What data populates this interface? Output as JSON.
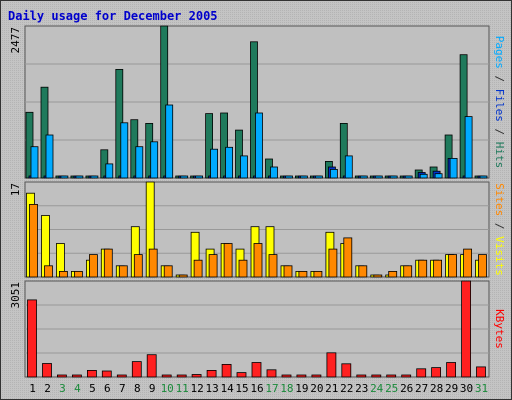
{
  "chart_data": {
    "type": "bar",
    "title": "Daily usage for December 2005",
    "categories": [
      "1",
      "2",
      "3",
      "4",
      "5",
      "6",
      "7",
      "8",
      "9",
      "10",
      "11",
      "12",
      "13",
      "14",
      "15",
      "16",
      "17",
      "18",
      "19",
      "20",
      "21",
      "22",
      "23",
      "24",
      "25",
      "26",
      "27",
      "28",
      "29",
      "30",
      "31"
    ],
    "weekend_days": [
      "3",
      "4",
      "10",
      "11",
      "17",
      "18",
      "24",
      "25",
      "31"
    ],
    "panels": [
      {
        "id": "hits",
        "ymax_label": "2477",
        "ymax": 2477,
        "ylabel_parts": [
          {
            "text": "Pages",
            "color": "#00aaff"
          },
          {
            "text": " / ",
            "color": "#333333"
          },
          {
            "text": "Files",
            "color": "#0033cc"
          },
          {
            "text": " / ",
            "color": "#333333"
          },
          {
            "text": "Hits",
            "color": "#1f7a5c"
          }
        ],
        "series": [
          {
            "name": "Hits",
            "color": "#1f7a5c",
            "values": [
              1070,
              1480,
              0,
              0,
              0,
              460,
              1770,
              950,
              890,
              2477,
              30,
              0,
              1050,
              1060,
              780,
              2220,
              310,
              30,
              0,
              0,
              270,
              890,
              0,
              0,
              0,
              0,
              130,
              180,
              700,
              2010,
              30
            ]
          },
          {
            "name": "Files",
            "color": "#0033cc",
            "values": [
              0,
              0,
              0,
              0,
              0,
              0,
              0,
              0,
              0,
              0,
              0,
              0,
              0,
              0,
              0,
              0,
              0,
              0,
              0,
              0,
              180,
              0,
              0,
              0,
              0,
              0,
              90,
              110,
              320,
              0,
              0
            ]
          },
          {
            "name": "Pages",
            "color": "#00aaff",
            "values": [
              510,
              700,
              0,
              0,
              0,
              230,
              900,
              510,
              590,
              1190,
              10,
              0,
              470,
              500,
              360,
              1060,
              180,
              20,
              0,
              0,
              140,
              360,
              0,
              0,
              0,
              0,
              60,
              70,
              320,
              1000,
              10
            ]
          }
        ]
      },
      {
        "id": "visits",
        "ymax_label": "17",
        "ymax": 17,
        "ylabel_parts": [
          {
            "text": "Sites",
            "color": "#ff8800"
          },
          {
            "text": " / ",
            "color": "#333333"
          },
          {
            "text": "Visits",
            "color": "#ffff00"
          }
        ],
        "series": [
          {
            "name": "Visits",
            "color": "#ffff00",
            "values": [
              15,
              11,
              6,
              1,
              3,
              5,
              2,
              9,
              17,
              2,
              0,
              8,
              5,
              6,
              5,
              9,
              9,
              2,
              1,
              1,
              8,
              6,
              2,
              0,
              0,
              2,
              3,
              3,
              4,
              4,
              3
            ]
          },
          {
            "name": "Sites",
            "color": "#ff8800",
            "values": [
              13,
              2,
              1,
              1,
              4,
              5,
              2,
              4,
              5,
              2,
              0,
              3,
              4,
              6,
              3,
              6,
              4,
              2,
              1,
              1,
              5,
              7,
              2,
              0,
              1,
              2,
              3,
              3,
              4,
              5,
              4
            ]
          }
        ]
      },
      {
        "id": "kbytes",
        "ymax_label": "3051",
        "ymax": 3051,
        "ylabel_parts": [
          {
            "text": "KBytes",
            "color": "#ff0000"
          }
        ],
        "series": [
          {
            "name": "KBytes",
            "color": "#ff2020",
            "values": [
              2450,
              430,
              0,
              0,
              210,
              190,
              0,
              490,
              710,
              30,
              0,
              80,
              210,
              400,
              140,
              460,
              230,
              0,
              0,
              0,
              770,
              420,
              30,
              0,
              0,
              0,
              260,
              300,
              460,
              3051,
              320
            ]
          }
        ]
      }
    ]
  }
}
